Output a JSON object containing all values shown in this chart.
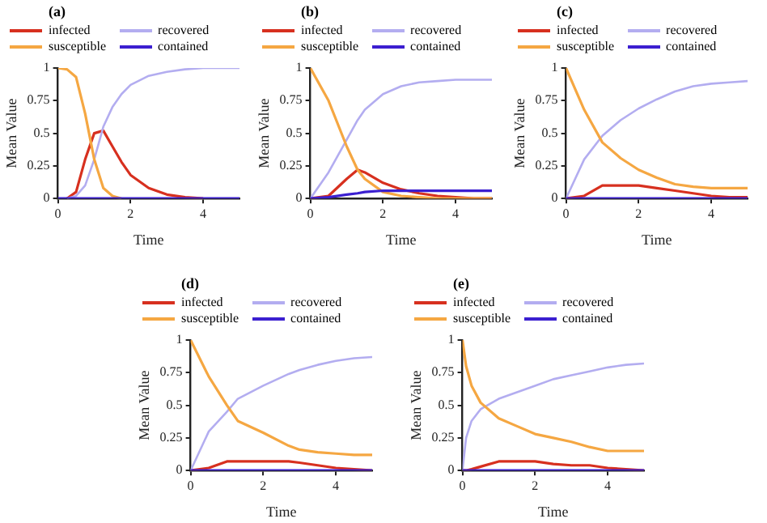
{
  "chart_data": [
    {
      "type": "line",
      "title": "(a)",
      "xlabel": "Time",
      "ylabel": "Mean Value",
      "xlim": [
        0,
        5
      ],
      "ylim": [
        0,
        1
      ],
      "xticks": [
        0,
        2,
        4
      ],
      "yticks": [
        0,
        0.25,
        0.5,
        0.75,
        1
      ],
      "grid": false,
      "legend": "top",
      "marker": "none",
      "line_style": "solid",
      "x": [
        0,
        0.25,
        0.5,
        0.75,
        1,
        1.25,
        1.5,
        1.75,
        2,
        2.5,
        3,
        3.5,
        4,
        4.5,
        5
      ],
      "series": [
        {
          "name": "infected",
          "color": "#d7301f",
          "values": [
            null,
            0,
            0.05,
            0.3,
            0.5,
            0.52,
            0.4,
            0.28,
            0.18,
            0.08,
            0.03,
            0.01,
            0,
            null,
            null
          ]
        },
        {
          "name": "recovered",
          "color": "#b3adf0",
          "values": [
            null,
            0,
            0.02,
            0.1,
            0.3,
            0.55,
            0.7,
            0.8,
            0.87,
            0.94,
            0.97,
            0.99,
            1,
            1,
            1
          ]
        },
        {
          "name": "susceptible",
          "color": "#f5a742",
          "values": [
            1,
            0.99,
            0.93,
            0.65,
            0.3,
            0.08,
            0.02,
            0,
            null,
            null,
            null,
            null,
            null,
            null,
            null
          ]
        },
        {
          "name": "contained",
          "color": "#3b1fd0",
          "values": [
            0,
            0,
            0,
            0,
            0,
            0,
            0,
            0,
            0,
            0,
            0,
            0,
            0,
            0,
            0
          ]
        }
      ]
    },
    {
      "type": "line",
      "title": "(b)",
      "xlabel": "Time",
      "ylabel": "Mean Value",
      "xlim": [
        0,
        5
      ],
      "ylim": [
        0,
        1
      ],
      "xticks": [
        0,
        2,
        4
      ],
      "yticks": [
        0,
        0.25,
        0.5,
        0.75,
        1
      ],
      "grid": false,
      "legend": "top",
      "marker": "none",
      "line_style": "solid",
      "x": [
        0,
        0.5,
        1,
        1.3,
        1.5,
        2,
        2.5,
        3,
        3.5,
        4,
        4.5,
        5
      ],
      "series": [
        {
          "name": "infected",
          "color": "#d7301f",
          "values": [
            0,
            0.02,
            0.15,
            0.22,
            0.2,
            0.12,
            0.07,
            0.04,
            0.02,
            0.01,
            0,
            0
          ]
        },
        {
          "name": "recovered",
          "color": "#b3adf0",
          "values": [
            0,
            0.2,
            0.45,
            0.6,
            0.68,
            0.8,
            0.86,
            0.89,
            0.9,
            0.91,
            0.91,
            0.91
          ]
        },
        {
          "name": "susceptible",
          "color": "#f5a742",
          "values": [
            1,
            0.75,
            0.4,
            0.22,
            0.15,
            0.05,
            0.02,
            0.01,
            0,
            0,
            0,
            0
          ]
        },
        {
          "name": "contained",
          "color": "#3b1fd0",
          "values": [
            0,
            0.01,
            0.03,
            0.04,
            0.05,
            0.06,
            0.06,
            0.06,
            0.06,
            0.06,
            0.06,
            0.06
          ]
        }
      ]
    },
    {
      "type": "line",
      "title": "(c)",
      "xlabel": "Time",
      "ylabel": "Mean Value",
      "xlim": [
        0,
        5
      ],
      "ylim": [
        0,
        1
      ],
      "xticks": [
        0,
        2,
        4
      ],
      "yticks": [
        0,
        0.25,
        0.5,
        0.75,
        1
      ],
      "grid": false,
      "legend": "top",
      "marker": "none",
      "line_style": "solid",
      "x": [
        0,
        0.5,
        1,
        1.5,
        2,
        2.5,
        3,
        3.5,
        4,
        4.5,
        5
      ],
      "series": [
        {
          "name": "infected",
          "color": "#d7301f",
          "values": [
            0,
            0.02,
            0.1,
            0.1,
            0.1,
            0.08,
            0.06,
            0.04,
            0.02,
            0.01,
            0.01
          ]
        },
        {
          "name": "recovered",
          "color": "#b3adf0",
          "values": [
            0,
            0.3,
            0.48,
            0.6,
            0.69,
            0.76,
            0.82,
            0.86,
            0.88,
            0.89,
            0.9
          ]
        },
        {
          "name": "susceptible",
          "color": "#f5a742",
          "values": [
            1,
            0.68,
            0.43,
            0.31,
            0.22,
            0.16,
            0.11,
            0.09,
            0.08,
            0.08,
            0.08
          ]
        },
        {
          "name": "contained",
          "color": "#3b1fd0",
          "values": [
            0,
            0,
            0,
            0,
            0,
            0,
            0,
            0,
            0,
            0,
            0
          ]
        }
      ]
    },
    {
      "type": "line",
      "title": "(d)",
      "xlabel": "Time",
      "ylabel": "Mean Value",
      "xlim": [
        0,
        5
      ],
      "ylim": [
        0,
        1
      ],
      "xticks": [
        0,
        2,
        4
      ],
      "yticks": [
        0,
        0.25,
        0.5,
        0.75,
        1
      ],
      "grid": false,
      "legend": "top",
      "marker": "none",
      "line_style": "solid",
      "x": [
        0,
        0.5,
        1,
        1.3,
        2,
        2.7,
        3,
        3.5,
        4,
        4.5,
        5
      ],
      "series": [
        {
          "name": "infected",
          "color": "#d7301f",
          "values": [
            0,
            0.02,
            0.07,
            0.07,
            0.07,
            0.07,
            0.06,
            0.04,
            0.02,
            0.01,
            0
          ]
        },
        {
          "name": "recovered",
          "color": "#b3adf0",
          "values": [
            0,
            0.3,
            0.45,
            0.55,
            0.65,
            0.74,
            0.77,
            0.81,
            0.84,
            0.86,
            0.87
          ]
        },
        {
          "name": "susceptible",
          "color": "#f5a742",
          "values": [
            1,
            0.72,
            0.5,
            0.38,
            0.29,
            0.19,
            0.16,
            0.14,
            0.13,
            0.12,
            0.12
          ]
        },
        {
          "name": "contained",
          "color": "#3b1fd0",
          "values": [
            0,
            0,
            0,
            0,
            0,
            0,
            0,
            0,
            0,
            0,
            0
          ]
        }
      ]
    },
    {
      "type": "line",
      "title": "(e)",
      "xlabel": "Time",
      "ylabel": "Mean Value",
      "xlim": [
        0,
        5
      ],
      "ylim": [
        0,
        1
      ],
      "xticks": [
        0,
        2,
        4
      ],
      "yticks": [
        0,
        0.25,
        0.5,
        0.75,
        1
      ],
      "grid": false,
      "legend": "top",
      "marker": "none",
      "line_style": "solid",
      "x": [
        0,
        0.1,
        0.25,
        0.5,
        1,
        1.5,
        2,
        2.5,
        3,
        3.5,
        4,
        4.5,
        5
      ],
      "series": [
        {
          "name": "infected",
          "color": "#d7301f",
          "values": [
            0,
            0,
            0.01,
            0.03,
            0.07,
            0.07,
            0.07,
            0.05,
            0.04,
            0.04,
            0.02,
            0.01,
            0
          ]
        },
        {
          "name": "recovered",
          "color": "#b3adf0",
          "values": [
            0,
            0.25,
            0.38,
            0.47,
            0.55,
            0.6,
            0.65,
            0.7,
            0.73,
            0.76,
            0.79,
            0.81,
            0.82
          ]
        },
        {
          "name": "susceptible",
          "color": "#f5a742",
          "values": [
            1,
            0.8,
            0.65,
            0.52,
            0.4,
            0.34,
            0.28,
            0.25,
            0.22,
            0.18,
            0.15,
            0.15,
            0.15
          ]
        },
        {
          "name": "contained",
          "color": "#3b1fd0",
          "values": [
            0,
            0,
            0,
            0,
            0,
            0,
            0,
            0,
            0,
            0,
            0,
            0,
            0
          ]
        }
      ]
    }
  ]
}
